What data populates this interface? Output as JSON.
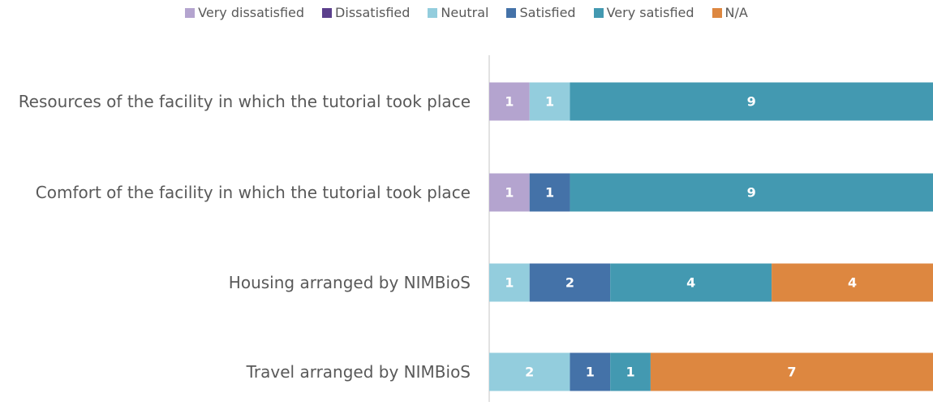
{
  "chart_data": {
    "type": "stacked_barh",
    "categories": [
      "Resources of the facility in which the tutorial took place",
      "Comfort of the facility in which the tutorial took place",
      "Housing arranged by NIMBioS",
      "Travel arranged by NIMBioS"
    ],
    "series": [
      {
        "name": "Very dissatisfied",
        "color": "#b4a4cf",
        "values": [
          1,
          1,
          0,
          0
        ]
      },
      {
        "name": "Dissatisfied",
        "color": "#5b3f8c",
        "values": [
          0,
          0,
          0,
          0
        ]
      },
      {
        "name": "Neutral",
        "color": "#93cddd",
        "values": [
          1,
          0,
          1,
          2
        ]
      },
      {
        "name": "Satisfied",
        "color": "#4472a8",
        "values": [
          0,
          1,
          2,
          1
        ]
      },
      {
        "name": "Very satisfied",
        "color": "#4399b1",
        "values": [
          9,
          9,
          4,
          1
        ]
      },
      {
        "name": "N/A",
        "color": "#dd8740",
        "values": [
          0,
          0,
          4,
          7
        ]
      }
    ],
    "xlim": [
      0,
      11
    ],
    "legend": "top"
  }
}
